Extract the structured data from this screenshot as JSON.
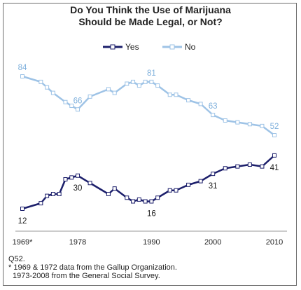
{
  "title_line1": "Do You Think the Use of Marijuana",
  "title_line2": "Should be Made Legal, or Not?",
  "notes": [
    "Q52.",
    "* 1969 & 1972 data from the Gallup Organization.",
    "1973-2008 from the General Social Survey."
  ],
  "colors": {
    "yes": "#1c1f6b",
    "no": "#9ec3e6",
    "no_label": "#7fb0dc",
    "yes_label": "#1a1a1a"
  },
  "chart_data": {
    "type": "line",
    "title": "Do You Think the Use of Marijuana Should be Made Legal, or Not?",
    "xlabel": "",
    "ylabel": "",
    "x_tick_labels": [
      "1969*",
      "1978",
      "1990",
      "2000",
      "2010"
    ],
    "x_ticks": [
      1969,
      1978,
      1990,
      2000,
      2010
    ],
    "ylim": [
      0,
      90
    ],
    "legend": "top-center",
    "grid": false,
    "series": [
      {
        "name": "Yes",
        "points": [
          [
            1969,
            12
          ],
          [
            1972,
            15
          ],
          [
            1973,
            19
          ],
          [
            1974,
            20
          ],
          [
            1975,
            20
          ],
          [
            1976,
            28
          ],
          [
            1977,
            29
          ],
          [
            1978,
            30
          ],
          [
            1980,
            26
          ],
          [
            1983,
            20
          ],
          [
            1984,
            23
          ],
          [
            1986,
            18
          ],
          [
            1987,
            16
          ],
          [
            1988,
            17
          ],
          [
            1989,
            16
          ],
          [
            1990,
            16
          ],
          [
            1991,
            18
          ],
          [
            1993,
            22
          ],
          [
            1994,
            22
          ],
          [
            1996,
            25
          ],
          [
            1998,
            27
          ],
          [
            2000,
            31
          ],
          [
            2002,
            34
          ],
          [
            2004,
            35
          ],
          [
            2006,
            36
          ],
          [
            2008,
            35
          ],
          [
            2010,
            41
          ]
        ],
        "labels": [
          {
            "x": 1969,
            "text": "12",
            "pos": "below"
          },
          {
            "x": 1978,
            "text": "30",
            "pos": "below"
          },
          {
            "x": 1990,
            "text": "16",
            "pos": "below"
          },
          {
            "x": 2000,
            "text": "31",
            "pos": "below"
          },
          {
            "x": 2010,
            "text": "41",
            "pos": "below"
          }
        ]
      },
      {
        "name": "No",
        "points": [
          [
            1969,
            84
          ],
          [
            1972,
            81
          ],
          [
            1973,
            78
          ],
          [
            1974,
            75
          ],
          [
            1976,
            70
          ],
          [
            1977,
            68
          ],
          [
            1978,
            66
          ],
          [
            1980,
            73
          ],
          [
            1983,
            77
          ],
          [
            1984,
            75
          ],
          [
            1986,
            80
          ],
          [
            1987,
            81
          ],
          [
            1988,
            79
          ],
          [
            1989,
            81
          ],
          [
            1990,
            81
          ],
          [
            1991,
            79
          ],
          [
            1993,
            74
          ],
          [
            1994,
            74
          ],
          [
            1996,
            71
          ],
          [
            1998,
            69
          ],
          [
            2000,
            63
          ],
          [
            2002,
            60
          ],
          [
            2004,
            59
          ],
          [
            2006,
            58
          ],
          [
            2008,
            57
          ],
          [
            2010,
            52
          ]
        ],
        "labels": [
          {
            "x": 1969,
            "text": "84",
            "pos": "above"
          },
          {
            "x": 1978,
            "text": "66",
            "pos": "above"
          },
          {
            "x": 1990,
            "text": "81",
            "pos": "above"
          },
          {
            "x": 2000,
            "text": "63",
            "pos": "above"
          },
          {
            "x": 2010,
            "text": "52",
            "pos": "above"
          }
        ]
      }
    ]
  }
}
